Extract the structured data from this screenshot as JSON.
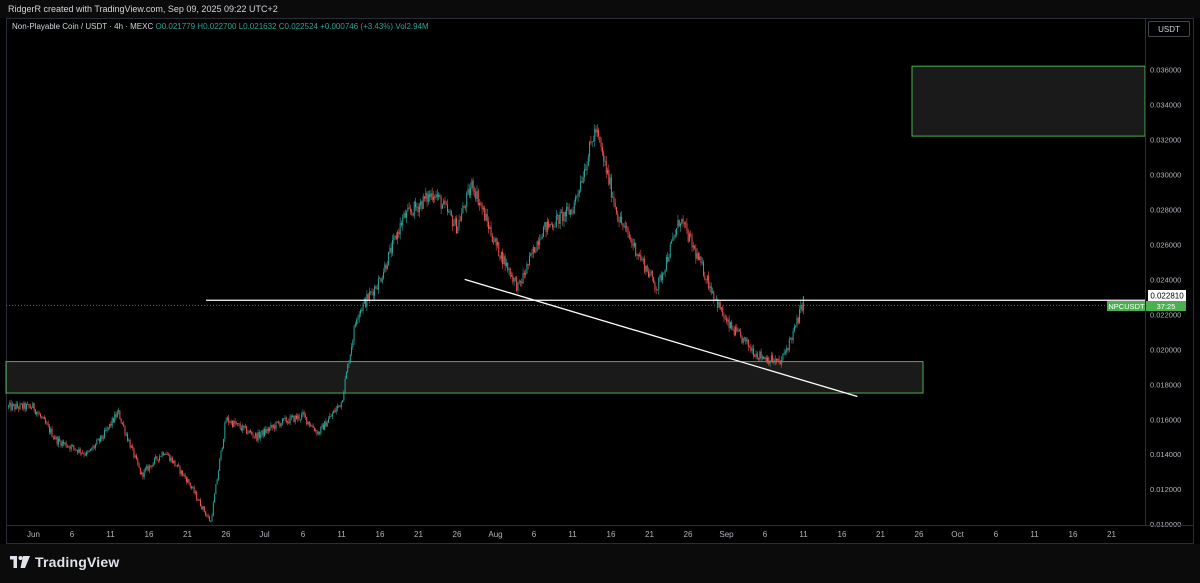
{
  "header": {
    "attribution": "RidgerR created with TradingView.com, Sep 09, 2025 09:22 UTC+2"
  },
  "legend": {
    "symbol": "Non-Playable Coin / USDT · 4h · MEXC",
    "open": "O0.021779",
    "high": "H0.022700",
    "low": "L0.021632",
    "close": "C0.022524",
    "change": "+0.000746 (+3.43%)",
    "volume": "Vol2.94M"
  },
  "currency_badge": "USDT",
  "footer": {
    "brand": "TradingView"
  },
  "colors": {
    "up": "#26a69a",
    "down": "#ef5350",
    "zone_border": "#4caf50",
    "price_badge": "#4caf50"
  },
  "chart_data": {
    "type": "candlestick",
    "timeframe": "4h",
    "x_tick_labels": [
      "Jun",
      "6",
      "11",
      "16",
      "21",
      "26",
      "Jul",
      "6",
      "11",
      "16",
      "21",
      "26",
      "Aug",
      "6",
      "11",
      "16",
      "21",
      "26",
      "Sep",
      "6",
      "11",
      "16",
      "21",
      "26",
      "Oct",
      "6",
      "11",
      "16",
      "21"
    ],
    "y_tick_labels": [
      "0.036000",
      "0.034000",
      "0.032000",
      "0.030000",
      "0.028000",
      "0.026000",
      "0.024000",
      "0.022000",
      "0.020000",
      "0.018000",
      "0.016000",
      "0.014000",
      "0.012000",
      "0.010000"
    ],
    "ylim": [
      0.00995,
      0.0389
    ],
    "last_price": {
      "label": "0.022810",
      "symbol_tag": "NPCUSDT",
      "countdown": "37:25",
      "value": 0.02281
    },
    "price_path": [
      {
        "x": "Jun 1",
        "y": 0.0167
      },
      {
        "x": "Jun 4",
        "y": 0.0148
      },
      {
        "x": "Jun 8",
        "y": 0.014
      },
      {
        "x": "Jun 10",
        "y": 0.015
      },
      {
        "x": "Jun 12",
        "y": 0.0164
      },
      {
        "x": "Jun 15",
        "y": 0.0128
      },
      {
        "x": "Jun 18",
        "y": 0.0142
      },
      {
        "x": "Jun 21",
        "y": 0.0125
      },
      {
        "x": "Jun 24",
        "y": 0.0101
      },
      {
        "x": "Jun 26",
        "y": 0.016
      },
      {
        "x": "Jun 30",
        "y": 0.015
      },
      {
        "x": "Jul 3",
        "y": 0.0158
      },
      {
        "x": "Jul 6",
        "y": 0.0162
      },
      {
        "x": "Jul 8",
        "y": 0.0152
      },
      {
        "x": "Jul 11",
        "y": 0.017
      },
      {
        "x": "Jul 13",
        "y": 0.022
      },
      {
        "x": "Jul 16",
        "y": 0.024
      },
      {
        "x": "Jul 19",
        "y": 0.0275
      },
      {
        "x": "Jul 23",
        "y": 0.029
      },
      {
        "x": "Jul 26",
        "y": 0.027
      },
      {
        "x": "Jul 28",
        "y": 0.0295
      },
      {
        "x": "Jul 31",
        "y": 0.026
      },
      {
        "x": "Aug 3",
        "y": 0.0235
      },
      {
        "x": "Aug 6",
        "y": 0.0268
      },
      {
        "x": "Aug 10",
        "y": 0.028
      },
      {
        "x": "Aug 13",
        "y": 0.0326
      },
      {
        "x": "Aug 16",
        "y": 0.0275
      },
      {
        "x": "Aug 21",
        "y": 0.0235
      },
      {
        "x": "Aug 24",
        "y": 0.0275
      },
      {
        "x": "Aug 27",
        "y": 0.0245
      },
      {
        "x": "Aug 30",
        "y": 0.0215
      },
      {
        "x": "Sep 3",
        "y": 0.0197
      },
      {
        "x": "Sep 6",
        "y": 0.0192
      },
      {
        "x": "Sep 8",
        "y": 0.0213
      },
      {
        "x": "Sep 9",
        "y": 0.02281
      }
    ],
    "annotations": {
      "horizontal_line": 0.02281,
      "trendline": [
        {
          "x": "Jul 27",
          "y": 0.024
        },
        {
          "x": "Sep 16",
          "y": 0.0173
        }
      ],
      "demand_zone": {
        "from": "Jun 1",
        "to": "Sep 24",
        "low": 0.0175,
        "high": 0.0193
      },
      "target_zone": {
        "from": "Sep 24",
        "to": "Oct 27",
        "low": 0.0322,
        "high": 0.0362
      }
    }
  }
}
